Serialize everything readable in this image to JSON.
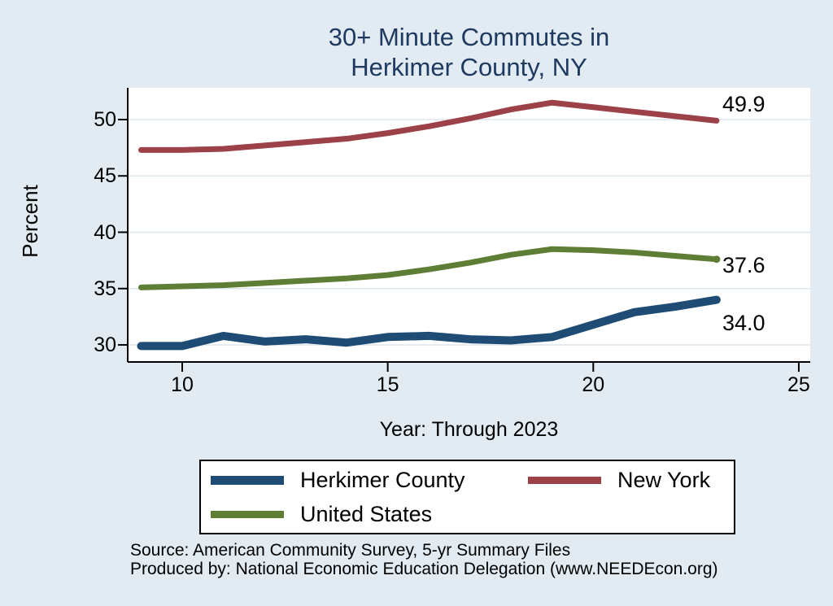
{
  "title": {
    "line1": "30+ Minute Commutes in",
    "line2": "Herkimer County, NY"
  },
  "axes": {
    "y_label": "Percent",
    "x_label": "Year: Through 2023",
    "y_ticks": [
      30,
      35,
      40,
      45,
      50
    ],
    "x_ticks": [
      10,
      15,
      20,
      25
    ]
  },
  "chart_data": {
    "type": "line",
    "title": "30+ Minute Commutes in Herkimer County, NY",
    "xlabel": "Year: Through 2023",
    "ylabel": "Percent",
    "x_ticks": [
      10,
      15,
      20,
      25
    ],
    "y_ticks": [
      30,
      35,
      40,
      45,
      50
    ],
    "xlim": [
      8.7,
      25.3
    ],
    "ylim": [
      28.3,
      52.8
    ],
    "grid": "horizontal",
    "legend_position": "bottom",
    "x": [
      9,
      10,
      11,
      12,
      13,
      14,
      15,
      16,
      17,
      18,
      19,
      20,
      21,
      22,
      23
    ],
    "series": [
      {
        "name": "Herkimer County",
        "color": "#1e4c74",
        "line_width": 10,
        "end_label": "34.0",
        "end_dot": false,
        "values": [
          29.9,
          29.9,
          30.8,
          30.3,
          30.5,
          30.2,
          30.7,
          30.8,
          30.5,
          30.4,
          30.7,
          31.8,
          32.9,
          33.4,
          34.0
        ]
      },
      {
        "name": "New York",
        "color": "#9c4147",
        "line_width": 7,
        "end_label": "49.9",
        "end_dot": false,
        "values": [
          47.3,
          47.3,
          47.4,
          47.7,
          48.0,
          48.3,
          48.8,
          49.4,
          50.1,
          50.9,
          51.5,
          51.1,
          50.7,
          50.3,
          49.9
        ]
      },
      {
        "name": "United States",
        "color": "#5e7d35",
        "line_width": 7,
        "end_label": "37.6",
        "end_dot": true,
        "values": [
          35.1,
          35.2,
          35.3,
          35.5,
          35.7,
          35.9,
          36.2,
          36.7,
          37.3,
          38.0,
          38.5,
          38.4,
          38.2,
          37.9,
          37.6
        ]
      }
    ]
  },
  "legend": {
    "items": [
      {
        "label": "Herkimer County",
        "color": "#1e4c74"
      },
      {
        "label": "New York",
        "color": "#9c4147"
      },
      {
        "label": "United States",
        "color": "#5e7d35"
      }
    ]
  },
  "source": {
    "line1": "Source: American Community Survey, 5-yr Summary Files",
    "line2": "Produced by: National Economic Education Delegation (www.NEEDEcon.org)"
  },
  "colors": {
    "background": "#e1ebf1",
    "plot_background": "#ffffff",
    "gridline": "#dbe7ef",
    "axis": "#000000",
    "title_text": "#1f3a61"
  }
}
